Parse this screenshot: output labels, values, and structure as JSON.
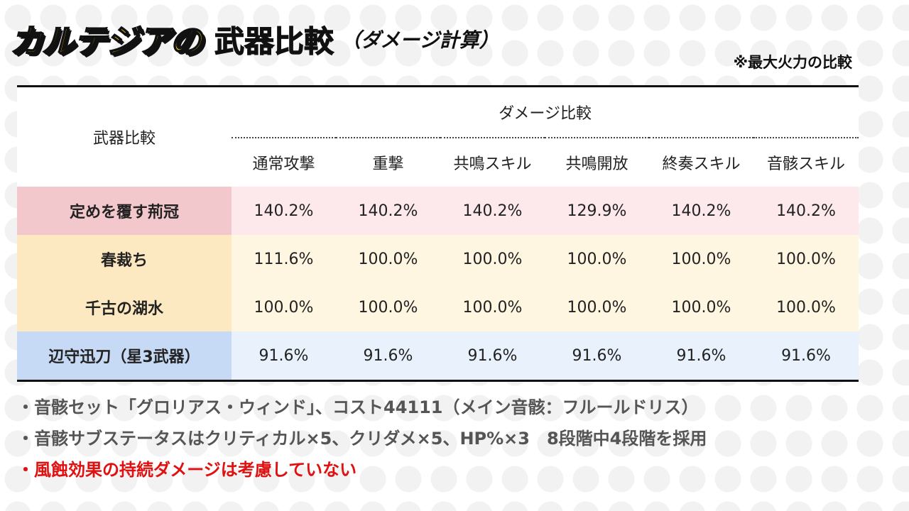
{
  "title": {
    "yellow": "カルテジアの",
    "black": "武器比較",
    "sub": "（ダメージ計算）"
  },
  "note": "※最大火力の比較",
  "table": {
    "corner_header": "武器比較",
    "group_header": "ダメージ比較",
    "columns": [
      "通常攻撃",
      "重撃",
      "共鳴スキル",
      "共鳴開放",
      "終奏スキル",
      "音骸スキル"
    ],
    "rows": [
      {
        "name": "定めを覆す荊冠",
        "values": [
          "140.2%",
          "140.2%",
          "140.2%",
          "129.9%",
          "140.2%",
          "140.2%"
        ]
      },
      {
        "name": "春裁ち",
        "values": [
          "111.6%",
          "100.0%",
          "100.0%",
          "100.0%",
          "100.0%",
          "100.0%"
        ]
      },
      {
        "name": "千古の湖水",
        "values": [
          "100.0%",
          "100.0%",
          "100.0%",
          "100.0%",
          "100.0%",
          "100.0%"
        ]
      },
      {
        "name": "辺守迅刀（星3武器）",
        "values": [
          "91.6%",
          "91.6%",
          "91.6%",
          "91.6%",
          "91.6%",
          "91.6%"
        ]
      }
    ],
    "row_colors": {
      "pink_name": "#f3c8cd",
      "pink": "#fde9ec",
      "yellow_name": "#fde9c1",
      "yellow": "#fff6e1",
      "blue_name": "#c7daf5",
      "blue": "#e8f1fc"
    }
  },
  "bullets": [
    "・音骸セット「グロリアス・ウィンド」、コスト44111（メイン音骸：フルールドリス）",
    "・音骸サブステータスはクリティカル×5、クリダメ×5、HP%×3　8段階中4段階を採用",
    "・風蝕効果の持続ダメージは考慮していない"
  ],
  "colors": {
    "title_yellow": "#ffd200",
    "warning_red": "#e01010"
  }
}
